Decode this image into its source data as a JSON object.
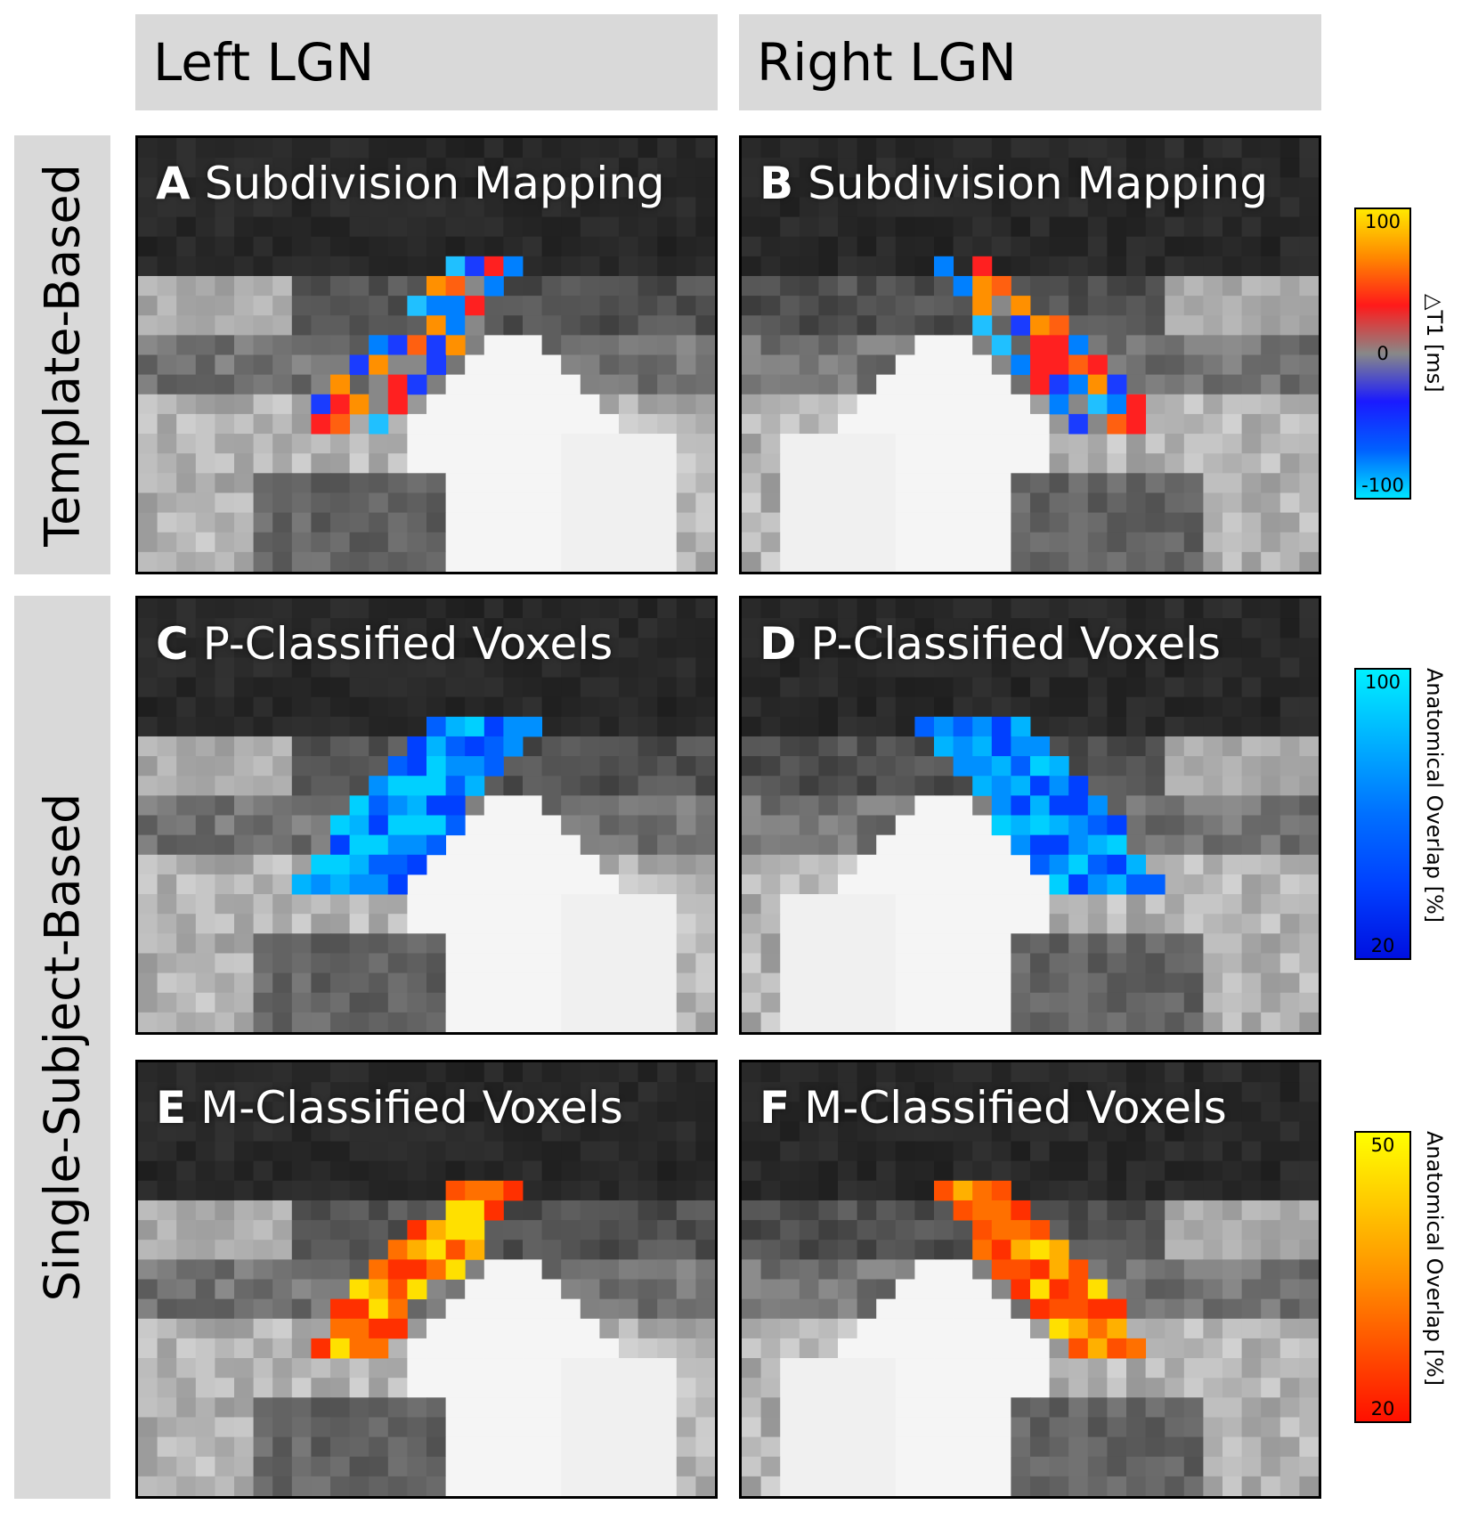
{
  "columns": {
    "left": "Left LGN",
    "right": "Right LGN"
  },
  "rows": {
    "top": "Template-Based",
    "bottom": "Single-Subject-Based"
  },
  "panels": [
    {
      "letter": "A",
      "title": "Subdivision Mapping",
      "overlay": "t1",
      "side": "left"
    },
    {
      "letter": "B",
      "title": "Subdivision Mapping",
      "overlay": "t1",
      "side": "right"
    },
    {
      "letter": "C",
      "title": "P-Classified Voxels",
      "overlay": "p",
      "side": "left"
    },
    {
      "letter": "D",
      "title": "P-Classified Voxels",
      "overlay": "p",
      "side": "right"
    },
    {
      "letter": "E",
      "title": "M-Classified Voxels",
      "overlay": "m",
      "side": "left"
    },
    {
      "letter": "F",
      "title": "M-Classified Voxels",
      "overlay": "m",
      "side": "right"
    }
  ],
  "colorbars": [
    {
      "name": "t1",
      "max": "100",
      "mid": "0",
      "min": "-100",
      "label": "△T1 [ms]",
      "colors": [
        "#ffe800",
        "#ff8800",
        "#ff1a1a",
        "#888888",
        "#1a1aff",
        "#0060ff",
        "#00e5ff"
      ]
    },
    {
      "name": "p",
      "max": "100",
      "min": "20",
      "label": "Anatomical Overlap [%]",
      "colors": [
        "#00f0ff",
        "#00b0ff",
        "#0070ff",
        "#0040ff",
        "#0010e0"
      ]
    },
    {
      "name": "m",
      "max": "50",
      "min": "20",
      "label": "Anatomical Overlap [%]",
      "colors": [
        "#ffff00",
        "#ffc800",
        "#ff9000",
        "#ff5000",
        "#ff1000"
      ]
    }
  ]
}
